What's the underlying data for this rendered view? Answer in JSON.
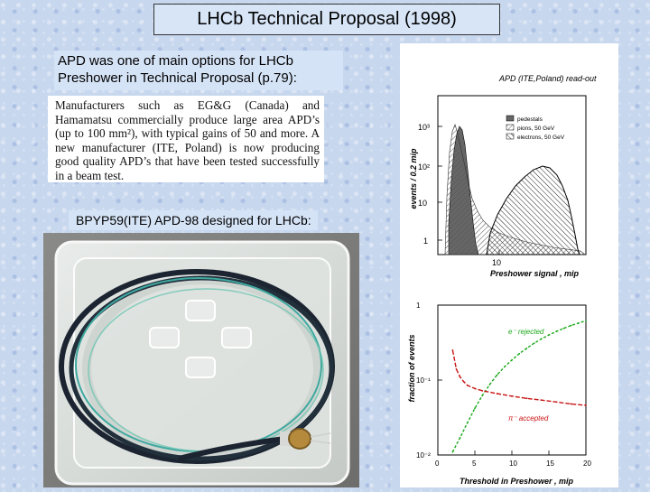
{
  "title": "LHCb Technical Proposal (1998)",
  "intro": "APD was one of main options for LHCb Preshower in Technical Proposal (p.79):",
  "quote": "Manufacturers such as EG&G (Canada) and Hamamatsu commercially produce large area APD’s (up to 100 mm²), with typical gains of 50 and more. A new manufacturer (ITE, Poland) is now producing good quality APD’s that have been tested successfully in a beam test.",
  "caption": "BPYP59(ITE) APD-98 designed for LHCb:",
  "chart_data": [
    {
      "type": "area",
      "title": "APD (ITE,Poland) read-out",
      "xlabel": "Preshower signal , mip",
      "ylabel": "events / 0.2 mip",
      "x_ticks": [
        "10"
      ],
      "y_ticks": [
        "1",
        "10",
        "10²",
        "10³"
      ],
      "legend": [
        "pedestals",
        "pions, 50 GeV",
        "electrons, 50 GeV"
      ],
      "legend_placement": "top-right",
      "scale": "log-log"
    },
    {
      "type": "line",
      "xlabel": "Threshold in Preshower , mip",
      "ylabel": "fraction of events",
      "x_ticks": [
        "0",
        "5",
        "10",
        "15",
        "20"
      ],
      "y_ticks": [
        "10⁻²",
        "10⁻¹",
        "1"
      ],
      "xlim": [
        0,
        20
      ],
      "ylim": [
        0.01,
        1
      ],
      "scale": "log-y",
      "series": [
        {
          "name": "e⁻ rejected",
          "color": "#1aa81a",
          "x": [
            2,
            3,
            4,
            5,
            6,
            7,
            8,
            9,
            10,
            11,
            12,
            13,
            14,
            15,
            16,
            17,
            18,
            19,
            20
          ],
          "y": [
            0.011,
            0.017,
            0.027,
            0.042,
            0.062,
            0.087,
            0.117,
            0.15,
            0.185,
            0.225,
            0.265,
            0.31,
            0.355,
            0.4,
            0.445,
            0.49,
            0.535,
            0.575,
            0.62
          ]
        },
        {
          "name": "π⁻ accepted",
          "color": "#c81414",
          "x": [
            2,
            2.5,
            3,
            3.5,
            4,
            5,
            6,
            8,
            10,
            12,
            14,
            16,
            18,
            20
          ],
          "y": [
            0.25,
            0.14,
            0.11,
            0.095,
            0.085,
            0.077,
            0.072,
            0.066,
            0.061,
            0.057,
            0.054,
            0.051,
            0.048,
            0.046
          ]
        }
      ]
    }
  ]
}
